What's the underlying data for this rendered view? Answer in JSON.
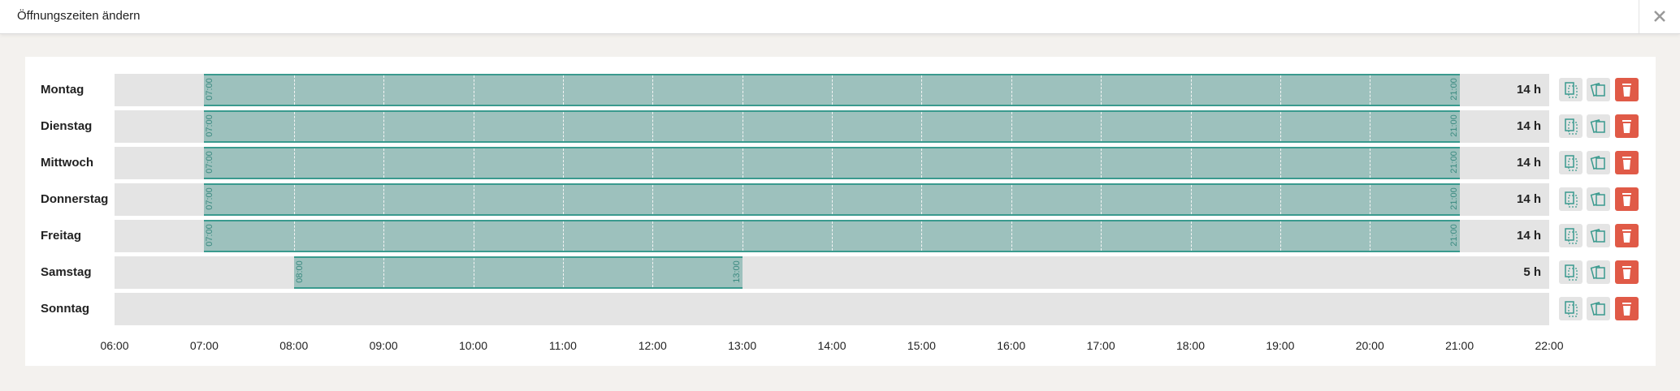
{
  "header": {
    "title": "Öffnungszeiten ändern"
  },
  "axis": {
    "ticks": [
      "06:00",
      "07:00",
      "08:00",
      "09:00",
      "10:00",
      "11:00",
      "12:00",
      "13:00",
      "14:00",
      "15:00",
      "16:00",
      "17:00",
      "18:00",
      "19:00",
      "20:00",
      "21:00",
      "22:00"
    ]
  },
  "days": [
    {
      "name": "Montag",
      "open": "07:00",
      "close": "21:00",
      "duration": "14 h"
    },
    {
      "name": "Dienstag",
      "open": "07:00",
      "close": "21:00",
      "duration": "14 h"
    },
    {
      "name": "Mittwoch",
      "open": "07:00",
      "close": "21:00",
      "duration": "14 h"
    },
    {
      "name": "Donnerstag",
      "open": "07:00",
      "close": "21:00",
      "duration": "14 h"
    },
    {
      "name": "Freitag",
      "open": "07:00",
      "close": "21:00",
      "duration": "14 h"
    },
    {
      "name": "Samstag",
      "open": "08:00",
      "close": "13:00",
      "duration": "5 h"
    },
    {
      "name": "Sonntag"
    }
  ]
}
